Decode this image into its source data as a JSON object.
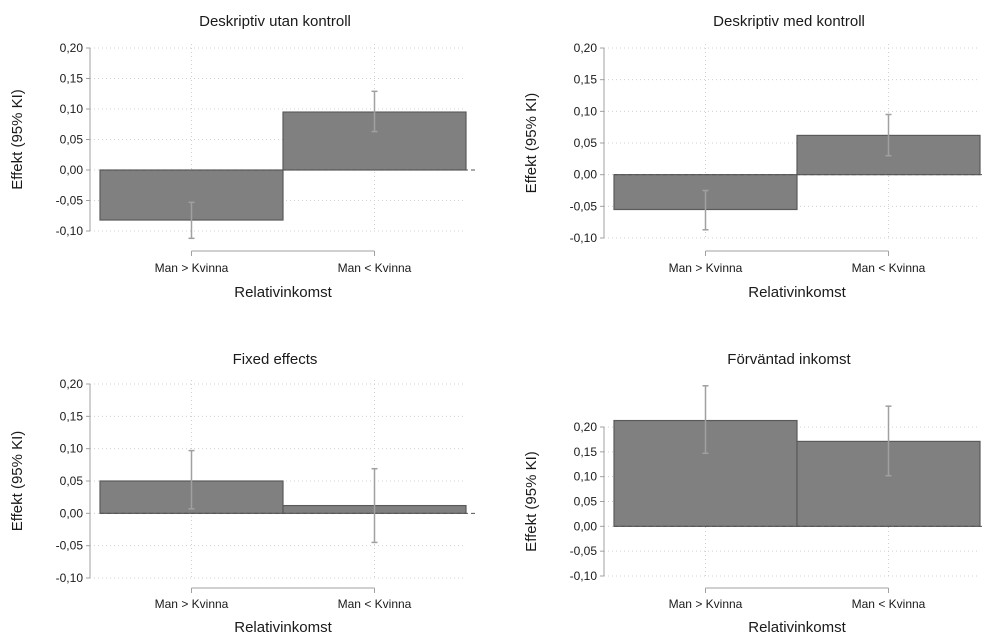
{
  "chart_data": [
    {
      "type": "bar",
      "title": "Deskriptiv utan kontroll",
      "xlabel": "Relativinkomst",
      "ylabel": "Effekt (95% KI)",
      "categories": [
        "Man > Kvinna",
        "Man < Kvinna"
      ],
      "values": [
        -0.082,
        0.095
      ],
      "ci_low": [
        -0.112,
        0.063
      ],
      "ci_high": [
        -0.053,
        0.129
      ],
      "yticks": [
        -0.1,
        -0.05,
        0.0,
        0.05,
        0.1,
        0.15,
        0.2
      ],
      "ytick_labels": [
        "-0,10",
        "-0,05",
        "0,00",
        "0,05",
        "0,10",
        "0,15",
        "0,20"
      ],
      "ylim": [
        -0.1,
        0.2
      ],
      "grid": true,
      "bar_color": "#808080",
      "errorbar_color": "#a0a0a0"
    },
    {
      "type": "bar",
      "title": "Deskriptiv med kontroll",
      "xlabel": "Relativinkomst",
      "ylabel": "Effekt (95% KI)",
      "categories": [
        "Man > Kvinna",
        "Man < Kvinna"
      ],
      "values": [
        -0.055,
        0.062
      ],
      "ci_low": [
        -0.087,
        0.03
      ],
      "ci_high": [
        -0.025,
        0.095
      ],
      "yticks": [
        -0.1,
        -0.05,
        0.0,
        0.05,
        0.1,
        0.15,
        0.2
      ],
      "ytick_labels": [
        "-0,10",
        "-0,05",
        "0,00",
        "0,05",
        "0,10",
        "0,15",
        "0,20"
      ],
      "ylim": [
        -0.1,
        0.2
      ],
      "grid": true,
      "bar_color": "#808080",
      "errorbar_color": "#a0a0a0"
    },
    {
      "type": "bar",
      "title": "Fixed effects",
      "xlabel": "Relativinkomst",
      "ylabel": "Effekt (95% KI)",
      "categories": [
        "Man > Kvinna",
        "Man < Kvinna"
      ],
      "values": [
        0.05,
        0.012
      ],
      "ci_low": [
        0.007,
        -0.045
      ],
      "ci_high": [
        0.097,
        0.069
      ],
      "yticks": [
        -0.1,
        -0.05,
        0.0,
        0.05,
        0.1,
        0.15,
        0.2
      ],
      "ytick_labels": [
        "-0,10",
        "-0,05",
        "0,00",
        "0,05",
        "0,10",
        "0,15",
        "0,20"
      ],
      "ylim": [
        -0.1,
        0.2
      ],
      "grid": true,
      "bar_color": "#808080",
      "errorbar_color": "#a0a0a0"
    },
    {
      "type": "bar",
      "title": "Förväntad inkomst",
      "xlabel": "Relativinkomst",
      "ylabel": "Effekt (95% KI)",
      "categories": [
        "Man > Kvinna",
        "Man < Kvinna"
      ],
      "values": [
        0.213,
        0.171
      ],
      "ci_low": [
        0.147,
        0.102
      ],
      "ci_high": [
        0.283,
        0.242
      ],
      "yticks": [
        -0.1,
        -0.05,
        0.0,
        0.05,
        0.1,
        0.15,
        0.2
      ],
      "ytick_labels": [
        "-0,10",
        "-0,05",
        "0,00",
        "0,05",
        "0,10",
        "0,15",
        "0,20"
      ],
      "ylim": [
        -0.1,
        0.2
      ],
      "grid": true,
      "bar_color": "#808080",
      "errorbar_color": "#a0a0a0"
    }
  ]
}
